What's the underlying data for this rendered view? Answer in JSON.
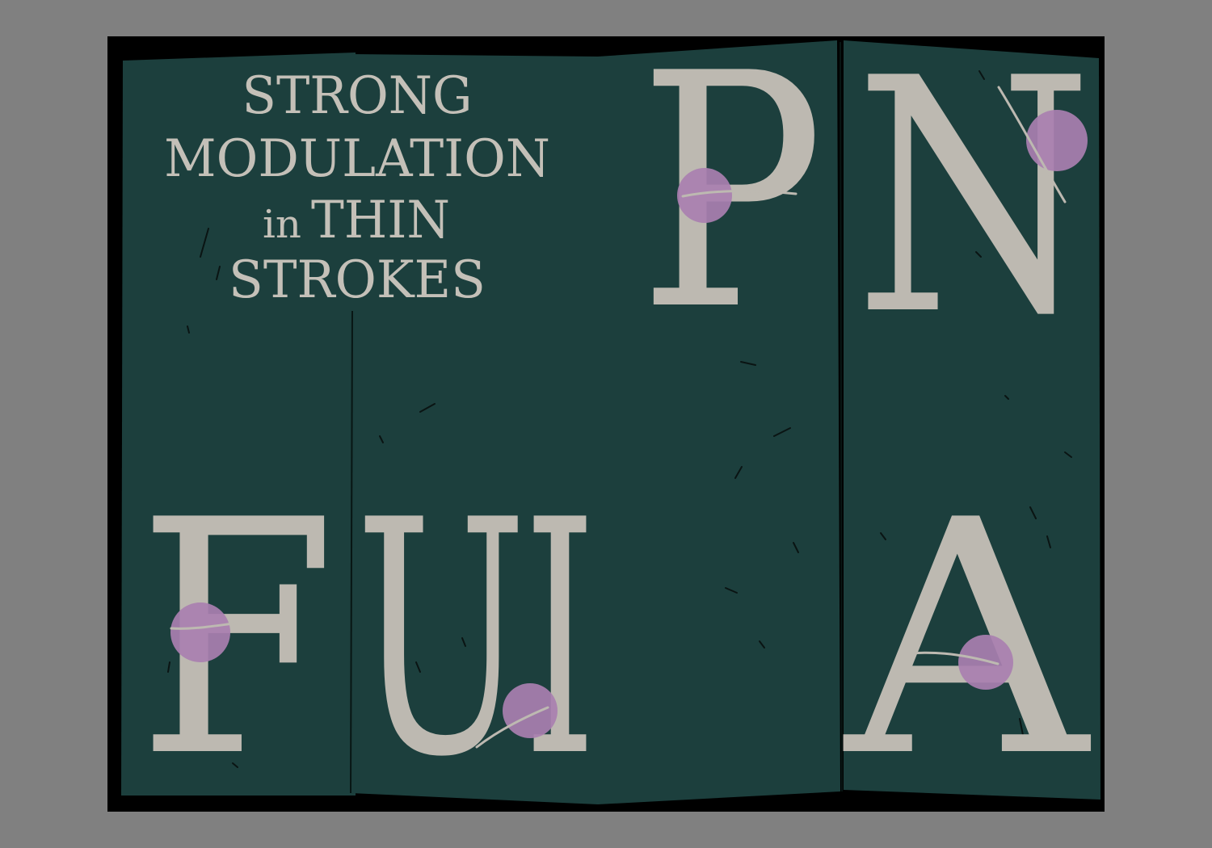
{
  "poster": {
    "headline": {
      "line1": "STRONG",
      "line2": "MODULATION",
      "line3_small": "in",
      "line3_rest": "THIN",
      "line4": "STROKES"
    },
    "letters": {
      "p": "P",
      "n": "N",
      "f": "F",
      "u": "U",
      "i": "I",
      "a": "A"
    },
    "colors": {
      "background": "#808080",
      "frame": "#000000",
      "paper": "#1c3f3d",
      "letter": "#bdb9b1",
      "dot": "#a97fb0"
    }
  }
}
